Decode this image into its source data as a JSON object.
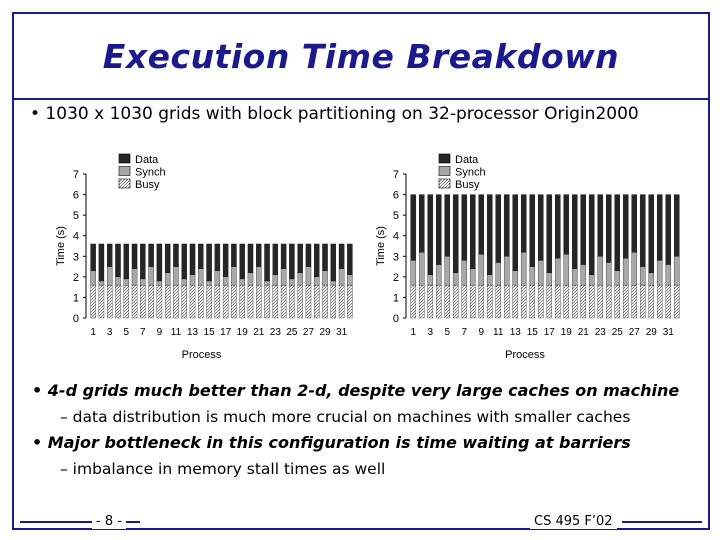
{
  "title": "Execution Time Breakdown",
  "top_bullet": "• 1030  x 1030 grids with block partitioning on 32-processor Origin2000",
  "bullets": [
    {
      "main": "• 4-d grids much better than 2-d, despite very large caches on machine",
      "sub": "– data distribution is much more crucial on machines with smaller caches"
    },
    {
      "main": "• Major bottleneck in this configuration is time waiting at barriers",
      "sub": "– imbalance in memory stall times as well"
    }
  ],
  "footer": {
    "page": "- 8 -",
    "course": "CS 495 F’02"
  },
  "chart_data": [
    {
      "type": "bar",
      "stacked": true,
      "xlabel": "Process",
      "ylabel": "Time (s)",
      "ylim": [
        0,
        7
      ],
      "yticks": [
        "0",
        "1",
        "2",
        "3",
        "4",
        "5",
        "6",
        "7"
      ],
      "xtick_labels": [
        "1",
        "3",
        "5",
        "7",
        "9",
        "11",
        "13",
        "15",
        "17",
        "19",
        "21",
        "23",
        "25",
        "27",
        "29",
        "31"
      ],
      "legend": [
        "Data",
        "Synch",
        "Busy"
      ],
      "series": [
        {
          "name": "Busy",
          "values": [
            1.6,
            1.6,
            1.6,
            1.6,
            1.6,
            1.6,
            1.6,
            1.6,
            1.6,
            1.6,
            1.6,
            1.6,
            1.6,
            1.6,
            1.6,
            1.6,
            1.6,
            1.6,
            1.6,
            1.6,
            1.6,
            1.6,
            1.6,
            1.6,
            1.6,
            1.6,
            1.6,
            1.6,
            1.6,
            1.6,
            1.6,
            1.6
          ]
        },
        {
          "name": "Synch",
          "values": [
            0.7,
            0.2,
            0.9,
            0.4,
            0.3,
            0.8,
            0.3,
            0.9,
            0.2,
            0.6,
            0.9,
            0.3,
            0.5,
            0.8,
            0.2,
            0.7,
            0.4,
            0.9,
            0.3,
            0.6,
            0.9,
            0.2,
            0.5,
            0.8,
            0.3,
            0.6,
            0.9,
            0.4,
            0.7,
            0.2,
            0.8,
            0.5
          ]
        },
        {
          "name": "Data",
          "values": [
            1.3,
            1.8,
            1.1,
            1.6,
            1.7,
            1.2,
            1.7,
            1.1,
            1.8,
            1.4,
            1.1,
            1.7,
            1.5,
            1.2,
            1.8,
            1.3,
            1.6,
            1.1,
            1.7,
            1.4,
            1.1,
            1.8,
            1.5,
            1.2,
            1.7,
            1.4,
            1.1,
            1.6,
            1.3,
            1.8,
            1.2,
            1.5
          ]
        }
      ]
    },
    {
      "type": "bar",
      "stacked": true,
      "xlabel": "Process",
      "ylabel": "Time (s)",
      "ylim": [
        0,
        7
      ],
      "yticks": [
        "0",
        "1",
        "2",
        "3",
        "4",
        "5",
        "6",
        "7"
      ],
      "xtick_labels": [
        "1",
        "3",
        "5",
        "7",
        "9",
        "11",
        "13",
        "15",
        "17",
        "19",
        "21",
        "23",
        "25",
        "27",
        "29",
        "31"
      ],
      "legend": [
        "Data",
        "Synch",
        "Busy"
      ],
      "series": [
        {
          "name": "Busy",
          "values": [
            1.6,
            1.6,
            1.6,
            1.6,
            1.6,
            1.6,
            1.6,
            1.6,
            1.6,
            1.6,
            1.6,
            1.6,
            1.6,
            1.6,
            1.6,
            1.6,
            1.6,
            1.6,
            1.6,
            1.6,
            1.6,
            1.6,
            1.6,
            1.6,
            1.6,
            1.6,
            1.6,
            1.6,
            1.6,
            1.6,
            1.6,
            1.6
          ]
        },
        {
          "name": "Synch",
          "values": [
            1.2,
            1.6,
            0.5,
            1.0,
            1.4,
            0.6,
            1.2,
            0.8,
            1.5,
            0.5,
            1.1,
            1.4,
            0.7,
            1.6,
            0.9,
            1.2,
            0.6,
            1.3,
            1.5,
            0.8,
            1.0,
            0.5,
            1.4,
            1.1,
            0.7,
            1.3,
            1.6,
            0.9,
            0.6,
            1.2,
            1.0,
            1.4
          ]
        },
        {
          "name": "Data",
          "values": [
            3.2,
            2.8,
            3.9,
            3.4,
            3.0,
            3.8,
            3.2,
            3.6,
            2.9,
            3.9,
            3.3,
            3.0,
            3.7,
            2.8,
            3.5,
            3.2,
            3.8,
            3.1,
            2.9,
            3.6,
            3.4,
            3.9,
            3.0,
            3.3,
            3.7,
            3.1,
            2.8,
            3.5,
            3.8,
            3.2,
            3.4,
            3.0
          ]
        }
      ]
    }
  ]
}
